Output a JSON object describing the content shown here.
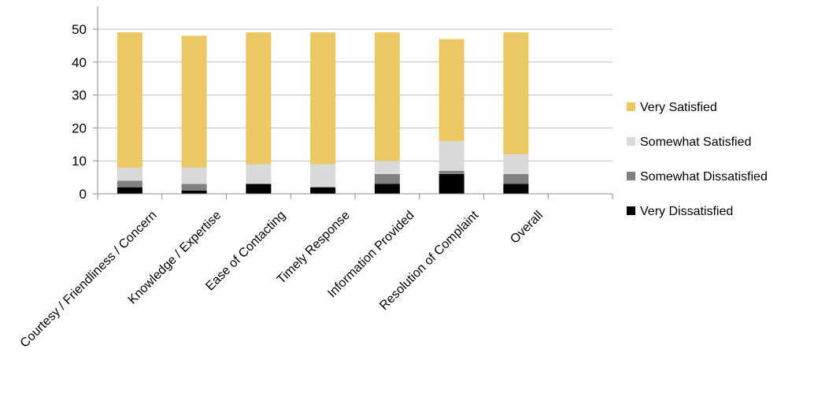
{
  "chart_data": {
    "type": "bar",
    "stacked": true,
    "categories": [
      "Courtesy / Friendliness / Concern",
      "Knowledge / Expertise",
      "Ease of Contacting",
      "Timely Response",
      "Information Provided",
      "Resolution of Complaint",
      "Overall"
    ],
    "series": [
      {
        "name": "Very Dissatisfied",
        "color": "#000000",
        "values": [
          2,
          1,
          3,
          2,
          3,
          6,
          3
        ]
      },
      {
        "name": "Somewhat Dissatisfied",
        "color": "#808080",
        "values": [
          2,
          2,
          0,
          0,
          3,
          1,
          3
        ]
      },
      {
        "name": "Somewhat Satisfied",
        "color": "#d9d9d9",
        "values": [
          4,
          5,
          6,
          7,
          4,
          9,
          6
        ]
      },
      {
        "name": "Very Satisfied",
        "color": "#ebc863",
        "values": [
          41,
          40,
          40,
          40,
          39,
          31,
          37
        ]
      }
    ],
    "legend_order": [
      "Very Satisfied",
      "Somewhat Satisfied",
      "Somewhat Dissatisfied",
      "Very Dissatisfied"
    ],
    "legend_position": "right",
    "yticks": [
      "0",
      "10",
      "20",
      "30",
      "40",
      "50"
    ],
    "ylim": [
      0,
      60
    ],
    "grid": true,
    "title": "",
    "xlabel": "",
    "ylabel": ""
  }
}
